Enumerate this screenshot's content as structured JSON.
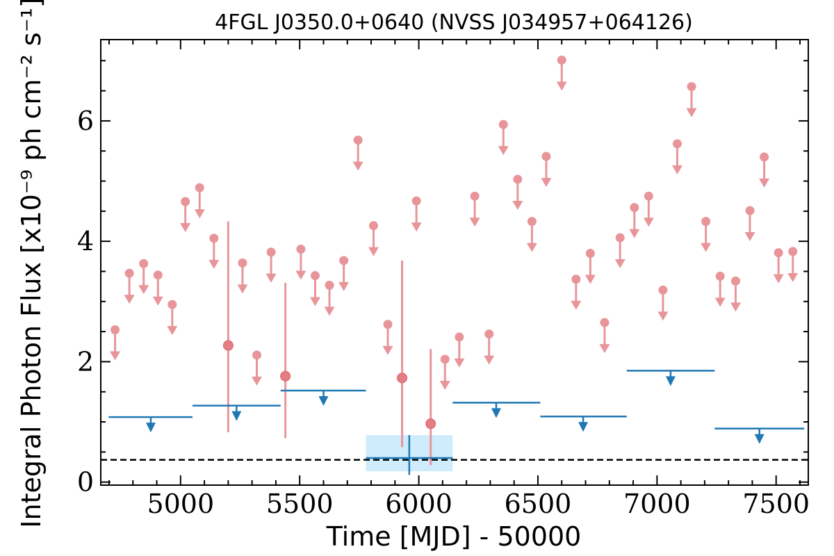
{
  "chart_data": {
    "type": "scatter",
    "title": "4FGL J0350.0+0640 (NVSS J034957+064126)",
    "xlabel": "Time [MJD] - 50000",
    "ylabel": "Integral Photon Flux [x10⁻⁹ ph cm⁻² s⁻¹]",
    "xlim": [
      4665,
      7635
    ],
    "ylim": [
      -0.05,
      7.35
    ],
    "x_ticks": [
      5000,
      5500,
      6000,
      6500,
      7000,
      7500
    ],
    "y_ticks": [
      0,
      2,
      4,
      6
    ],
    "grid": false,
    "colors": {
      "short_bins": "#e8959a",
      "long_bins": "#1f77b4",
      "band_fill": "#bfe6fb",
      "reference_line": "#000000"
    },
    "reference_line": {
      "y": 0.37,
      "style": "dashed"
    },
    "detection_band": {
      "x0": 5778,
      "x1": 6142,
      "y0": 0.18,
      "y1": 0.78
    },
    "long_bin_detection": {
      "x": 5960,
      "y": 0.4,
      "x0": 5778,
      "x1": 6142,
      "y0": 0.12,
      "y1": 0.78
    },
    "short_bin_upper_limits": [
      {
        "x": 4725,
        "y": 2.53
      },
      {
        "x": 4785,
        "y": 3.47
      },
      {
        "x": 4845,
        "y": 3.63
      },
      {
        "x": 4905,
        "y": 3.44
      },
      {
        "x": 4965,
        "y": 2.95
      },
      {
        "x": 5020,
        "y": 4.66
      },
      {
        "x": 5080,
        "y": 4.89
      },
      {
        "x": 5140,
        "y": 4.05
      },
      {
        "x": 5260,
        "y": 3.64
      },
      {
        "x": 5320,
        "y": 2.11
      },
      {
        "x": 5380,
        "y": 3.82
      },
      {
        "x": 5505,
        "y": 3.87
      },
      {
        "x": 5565,
        "y": 3.43
      },
      {
        "x": 5625,
        "y": 3.27
      },
      {
        "x": 5685,
        "y": 3.68
      },
      {
        "x": 5745,
        "y": 5.68
      },
      {
        "x": 5810,
        "y": 4.26
      },
      {
        "x": 5870,
        "y": 2.62
      },
      {
        "x": 5990,
        "y": 4.67
      },
      {
        "x": 6110,
        "y": 2.04
      },
      {
        "x": 6170,
        "y": 2.41
      },
      {
        "x": 6235,
        "y": 4.75
      },
      {
        "x": 6295,
        "y": 2.46
      },
      {
        "x": 6355,
        "y": 5.94
      },
      {
        "x": 6415,
        "y": 5.03
      },
      {
        "x": 6475,
        "y": 4.33
      },
      {
        "x": 6535,
        "y": 5.41
      },
      {
        "x": 6600,
        "y": 7.01
      },
      {
        "x": 6660,
        "y": 3.37
      },
      {
        "x": 6720,
        "y": 3.8
      },
      {
        "x": 6780,
        "y": 2.65
      },
      {
        "x": 6845,
        "y": 4.06
      },
      {
        "x": 6905,
        "y": 4.56
      },
      {
        "x": 6965,
        "y": 4.75
      },
      {
        "x": 7025,
        "y": 3.19
      },
      {
        "x": 7085,
        "y": 5.62
      },
      {
        "x": 7145,
        "y": 6.57
      },
      {
        "x": 7205,
        "y": 4.33
      },
      {
        "x": 7265,
        "y": 3.42
      },
      {
        "x": 7330,
        "y": 3.34
      },
      {
        "x": 7390,
        "y": 4.51
      },
      {
        "x": 7450,
        "y": 5.4
      },
      {
        "x": 7510,
        "y": 3.81
      },
      {
        "x": 7570,
        "y": 3.83
      }
    ],
    "short_bin_detections": [
      {
        "x": 5200,
        "y": 2.27,
        "y0": 0.83,
        "y1": 4.33
      },
      {
        "x": 5440,
        "y": 1.76,
        "y0": 0.73,
        "y1": 3.31
      },
      {
        "x": 5930,
        "y": 1.73,
        "y0": 0.58,
        "y1": 3.68
      },
      {
        "x": 6050,
        "y": 0.97,
        "y0": 0.28,
        "y1": 2.21
      }
    ],
    "long_bin_upper_limits": [
      {
        "x0": 4698,
        "x1": 5050,
        "y": 1.08,
        "xc": 4875
      },
      {
        "x0": 5050,
        "x1": 5420,
        "y": 1.27,
        "xc": 5235
      },
      {
        "x0": 5420,
        "x1": 5778,
        "y": 1.52,
        "xc": 5600
      },
      {
        "x0": 6142,
        "x1": 6510,
        "y": 1.32,
        "xc": 6325
      },
      {
        "x0": 6510,
        "x1": 6873,
        "y": 1.09,
        "xc": 6690
      },
      {
        "x0": 6873,
        "x1": 7242,
        "y": 1.85,
        "xc": 7057
      },
      {
        "x0": 7242,
        "x1": 7618,
        "y": 0.89,
        "xc": 7430
      }
    ]
  }
}
